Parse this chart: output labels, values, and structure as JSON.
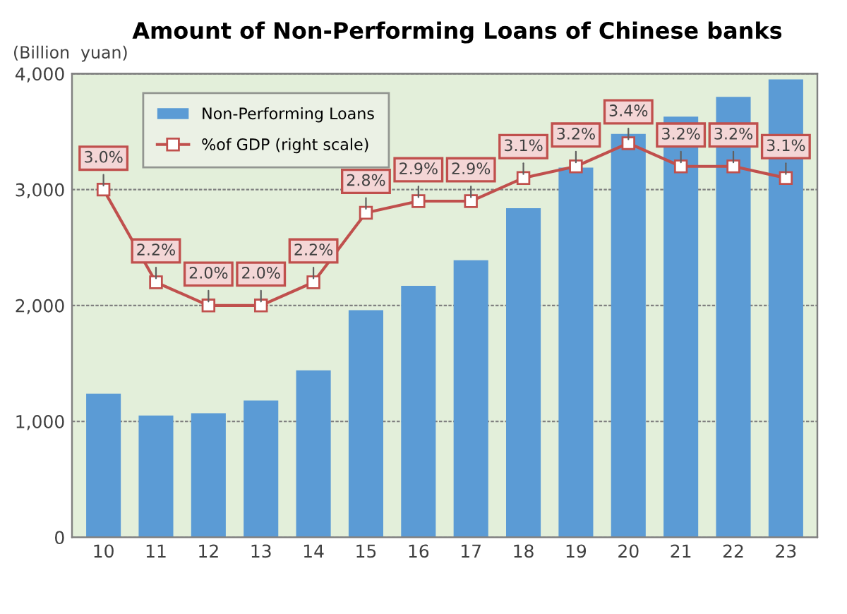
{
  "chart_data": {
    "type": "bar",
    "title": "Amount of Non-Performing Loans of Chinese banks",
    "ylabel": "(Billion  yuan)",
    "categories": [
      "10",
      "11",
      "12",
      "13",
      "14",
      "15",
      "16",
      "17",
      "18",
      "19",
      "20",
      "21",
      "22",
      "23"
    ],
    "series": [
      {
        "name": "Non-Performing Loans",
        "color": "#5b9bd5",
        "values": [
          1240,
          1050,
          1070,
          1180,
          1440,
          1960,
          2170,
          2390,
          2840,
          3190,
          3480,
          3630,
          3800,
          3950
        ]
      },
      {
        "name": "%of GDP (right scale)",
        "type": "line",
        "axis": "y2",
        "color": "#c0504d",
        "marker": "square",
        "data_labels": true,
        "value_labels": [
          "3.0%",
          "2.2%",
          "2.0%",
          "2.0%",
          "2.2%",
          "2.8%",
          "2.9%",
          "2.9%",
          "3.1%",
          "3.2%",
          "3.4%",
          "3.2%",
          "3.2%",
          "3.1%"
        ],
        "values": [
          3.0,
          2.2,
          2.0,
          2.0,
          2.2,
          2.8,
          2.9,
          2.9,
          3.1,
          3.2,
          3.4,
          3.2,
          3.2,
          3.1
        ]
      }
    ],
    "ylim": [
      0,
      4000
    ],
    "yticks": [
      {
        "value": 0,
        "label": "0"
      },
      {
        "value": 1000,
        "label": "1,000"
      },
      {
        "value": 2000,
        "label": "2,000"
      },
      {
        "value": 3000,
        "label": "3,000"
      },
      {
        "value": 4000,
        "label": "4,000"
      }
    ],
    "y2lim": [
      0,
      4
    ],
    "grid": "y",
    "legend": "top left"
  }
}
